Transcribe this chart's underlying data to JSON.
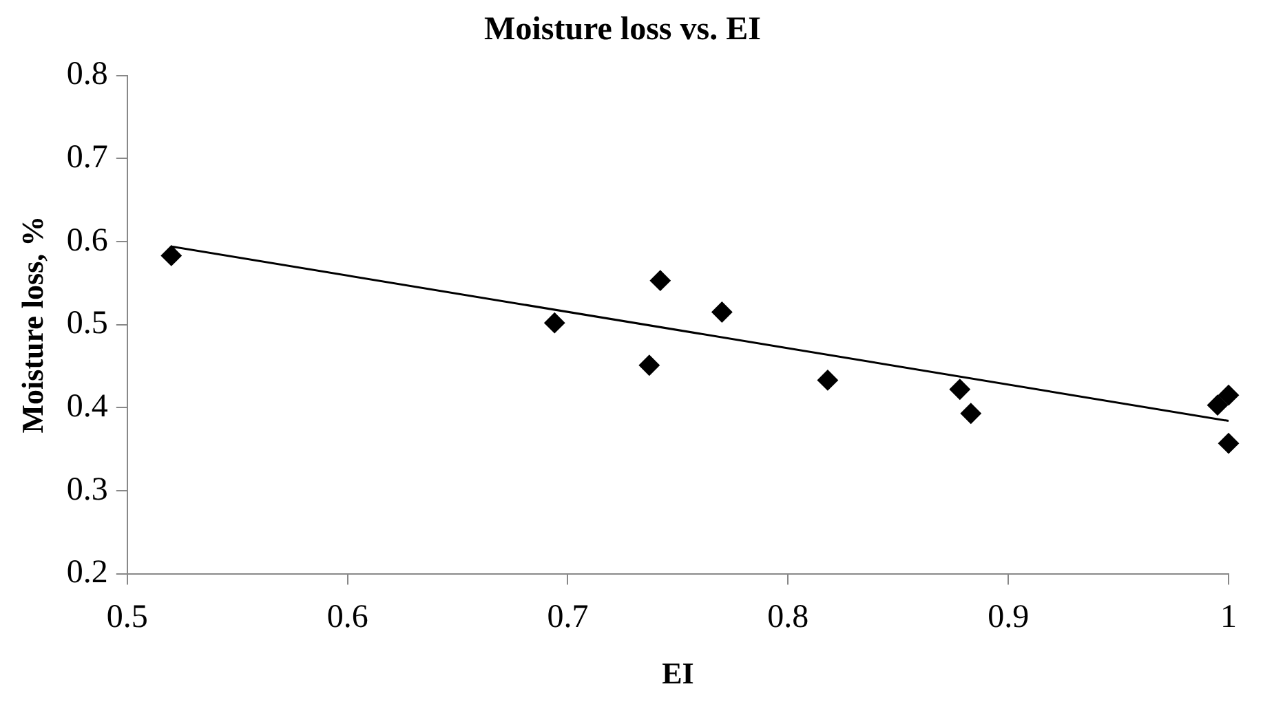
{
  "chart_data": {
    "type": "scatter",
    "title": "Moisture loss vs. EI",
    "xlabel": "EI",
    "ylabel": "Moisture loss, %",
    "marker": "diamond",
    "grid": false,
    "legend": false,
    "xlim": [
      0.5,
      1
    ],
    "xticks": [
      0.5,
      0.6,
      0.7,
      0.8,
      0.9,
      1
    ],
    "ylim": [
      0.2,
      0.8
    ],
    "yticks": [
      0.2,
      0.3,
      0.4,
      0.5,
      0.6,
      0.7,
      0.8
    ],
    "series": [
      {
        "type": "scatter",
        "color": "#000000",
        "x": [
          0.52,
          0.694,
          0.737,
          0.742,
          0.77,
          0.818,
          0.878,
          0.883,
          0.995,
          1.0,
          1.0
        ],
        "values": [
          0.583,
          0.502,
          0.451,
          0.553,
          0.515,
          0.433,
          0.422,
          0.393,
          0.403,
          0.415,
          0.357
        ]
      },
      {
        "type": "line",
        "color": "#000000",
        "marker": "none",
        "x": [
          0.52,
          1.0
        ],
        "values": [
          0.594,
          0.384
        ]
      }
    ]
  }
}
